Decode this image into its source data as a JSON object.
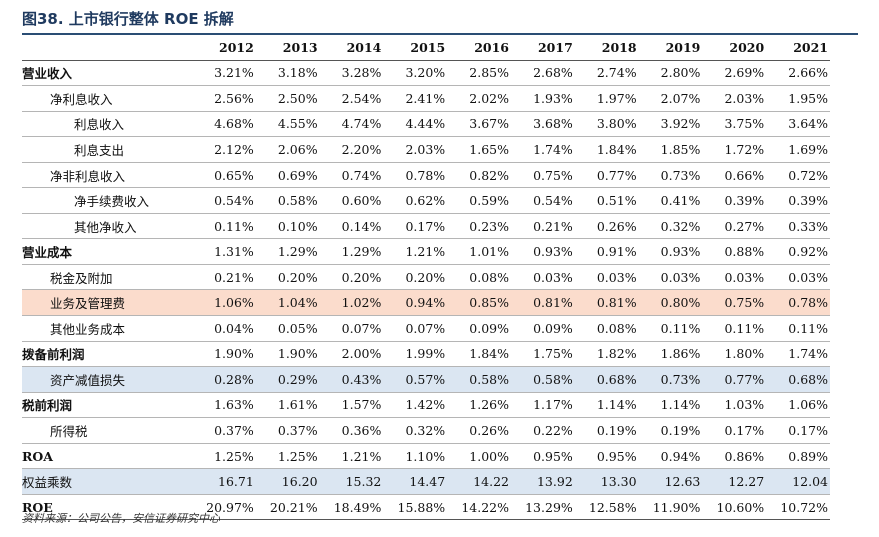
{
  "title": "图38. 上市银行整体 ROE 拆解",
  "years": [
    "2012",
    "2013",
    "2014",
    "2015",
    "2016",
    "2017",
    "2018",
    "2019",
    "2020",
    "2021"
  ],
  "rows": [
    {
      "label": "营业收入",
      "indent": 0,
      "bold": true,
      "hl": "",
      "values": [
        "3.21%",
        "3.18%",
        "3.28%",
        "3.20%",
        "2.85%",
        "2.68%",
        "2.74%",
        "2.80%",
        "2.69%",
        "2.66%"
      ]
    },
    {
      "label": "净利息收入",
      "indent": 1,
      "bold": false,
      "hl": "",
      "values": [
        "2.56%",
        "2.50%",
        "2.54%",
        "2.41%",
        "2.02%",
        "1.93%",
        "1.97%",
        "2.07%",
        "2.03%",
        "1.95%"
      ]
    },
    {
      "label": "利息收入",
      "indent": 2,
      "bold": false,
      "hl": "",
      "values": [
        "4.68%",
        "4.55%",
        "4.74%",
        "4.44%",
        "3.67%",
        "3.68%",
        "3.80%",
        "3.92%",
        "3.75%",
        "3.64%"
      ]
    },
    {
      "label": "利息支出",
      "indent": 2,
      "bold": false,
      "hl": "",
      "values": [
        "2.12%",
        "2.06%",
        "2.20%",
        "2.03%",
        "1.65%",
        "1.74%",
        "1.84%",
        "1.85%",
        "1.72%",
        "1.69%"
      ]
    },
    {
      "label": "净非利息收入",
      "indent": 1,
      "bold": false,
      "hl": "",
      "values": [
        "0.65%",
        "0.69%",
        "0.74%",
        "0.78%",
        "0.82%",
        "0.75%",
        "0.77%",
        "0.73%",
        "0.66%",
        "0.72%"
      ]
    },
    {
      "label": "净手续费收入",
      "indent": 2,
      "bold": false,
      "hl": "",
      "values": [
        "0.54%",
        "0.58%",
        "0.60%",
        "0.62%",
        "0.59%",
        "0.54%",
        "0.51%",
        "0.41%",
        "0.39%",
        "0.39%"
      ]
    },
    {
      "label": "其他净收入",
      "indent": 2,
      "bold": false,
      "hl": "",
      "values": [
        "0.11%",
        "0.10%",
        "0.14%",
        "0.17%",
        "0.23%",
        "0.21%",
        "0.26%",
        "0.32%",
        "0.27%",
        "0.33%"
      ]
    },
    {
      "label": "营业成本",
      "indent": 0,
      "bold": true,
      "hl": "",
      "values": [
        "1.31%",
        "1.29%",
        "1.29%",
        "1.21%",
        "1.01%",
        "0.93%",
        "0.91%",
        "0.93%",
        "0.88%",
        "0.92%"
      ]
    },
    {
      "label": "税金及附加",
      "indent": 1,
      "bold": false,
      "hl": "",
      "values": [
        "0.21%",
        "0.20%",
        "0.20%",
        "0.20%",
        "0.08%",
        "0.03%",
        "0.03%",
        "0.03%",
        "0.03%",
        "0.03%"
      ]
    },
    {
      "label": "业务及管理费",
      "indent": 1,
      "bold": false,
      "hl": "pink",
      "values": [
        "1.06%",
        "1.04%",
        "1.02%",
        "0.94%",
        "0.85%",
        "0.81%",
        "0.81%",
        "0.80%",
        "0.75%",
        "0.78%"
      ]
    },
    {
      "label": "其他业务成本",
      "indent": 1,
      "bold": false,
      "hl": "",
      "values": [
        "0.04%",
        "0.05%",
        "0.07%",
        "0.07%",
        "0.09%",
        "0.09%",
        "0.08%",
        "0.11%",
        "0.11%",
        "0.11%"
      ]
    },
    {
      "label": "拨备前利润",
      "indent": 0,
      "bold": true,
      "hl": "",
      "values": [
        "1.90%",
        "1.90%",
        "2.00%",
        "1.99%",
        "1.84%",
        "1.75%",
        "1.82%",
        "1.86%",
        "1.80%",
        "1.74%"
      ]
    },
    {
      "label": "资产减值损失",
      "indent": 1,
      "bold": false,
      "hl": "blue",
      "values": [
        "0.28%",
        "0.29%",
        "0.43%",
        "0.57%",
        "0.58%",
        "0.58%",
        "0.68%",
        "0.73%",
        "0.77%",
        "0.68%"
      ]
    },
    {
      "label": "税前利润",
      "indent": 0,
      "bold": true,
      "hl": "",
      "values": [
        "1.63%",
        "1.61%",
        "1.57%",
        "1.42%",
        "1.26%",
        "1.17%",
        "1.14%",
        "1.14%",
        "1.03%",
        "1.06%"
      ]
    },
    {
      "label": "所得税",
      "indent": 1,
      "bold": false,
      "hl": "",
      "values": [
        "0.37%",
        "0.37%",
        "0.36%",
        "0.32%",
        "0.26%",
        "0.22%",
        "0.19%",
        "0.19%",
        "0.17%",
        "0.17%"
      ]
    },
    {
      "label": "ROA",
      "indent": 0,
      "bold": true,
      "hl": "",
      "values": [
        "1.25%",
        "1.25%",
        "1.21%",
        "1.10%",
        "1.00%",
        "0.95%",
        "0.95%",
        "0.94%",
        "0.86%",
        "0.89%"
      ]
    },
    {
      "label": "权益乘数",
      "indent": 0,
      "bold": false,
      "hl": "blue",
      "values": [
        "16.71",
        "16.20",
        "15.32",
        "14.47",
        "14.22",
        "13.92",
        "13.30",
        "12.63",
        "12.27",
        "12.04"
      ]
    },
    {
      "label": "ROE",
      "indent": 0,
      "bold": true,
      "hl": "",
      "values": [
        "20.97%",
        "20.21%",
        "18.49%",
        "15.88%",
        "14.22%",
        "13.29%",
        "12.58%",
        "11.90%",
        "10.60%",
        "10.72%"
      ]
    }
  ],
  "source": "资料来源：公司公告，安信证券研究中心"
}
